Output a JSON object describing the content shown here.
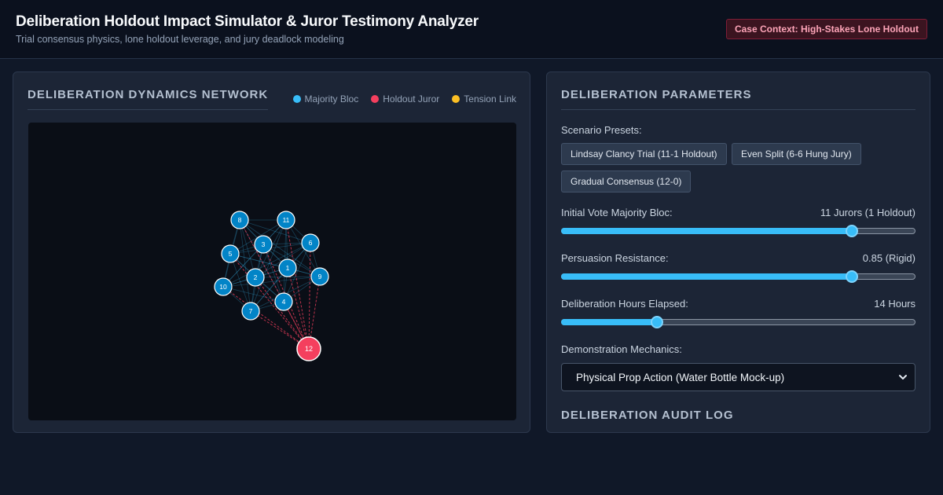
{
  "header": {
    "title": "Deliberation Holdout Impact Simulator & Juror Testimony Analyzer",
    "subtitle": "Trial consensus physics, lone holdout leverage, and jury deadlock modeling",
    "context_badge": "Case Context: High-Stakes Lone Holdout"
  },
  "network": {
    "title": "Deliberation Dynamics Network",
    "legend": [
      {
        "label": "Majority Bloc",
        "color": "#38bdf8"
      },
      {
        "label": "Holdout Juror",
        "color": "#f43f5e"
      },
      {
        "label": "Tension Link",
        "color": "#fbbf24"
      }
    ],
    "majority_jurors": [
      "8",
      "11",
      "3",
      "6",
      "5",
      "1",
      "2",
      "9",
      "10",
      "4",
      "7"
    ],
    "holdout_juror": "12",
    "colors": {
      "majority": "#0284c7",
      "holdout": "#f43f5e",
      "tension": "#f43f5e",
      "link": "#38bdf8"
    }
  },
  "params": {
    "title": "Deliberation Parameters",
    "presets_label": "Scenario Presets:",
    "presets": [
      "Lindsay Clancy Trial (11-1 Holdout)",
      "Even Split (6-6 Hung Jury)",
      "Gradual Consensus (12-0)"
    ],
    "majority": {
      "label": "Initial Vote Majority Bloc:",
      "value": "11 Jurors (1 Holdout)",
      "fraction": 0.82
    },
    "resistance": {
      "label": "Persuasion Resistance:",
      "value": "0.85 (Rigid)",
      "fraction": 0.82
    },
    "hours": {
      "label": "Deliberation Hours Elapsed:",
      "value": "14 Hours",
      "fraction": 0.27
    },
    "mechanics": {
      "label": "Demonstration Mechanics:",
      "selected": "Physical Prop Action (Water Bottle Mock-up)"
    },
    "accent_color": "#38bdf8"
  },
  "audit": {
    "title": "Deliberation Audit Log"
  }
}
